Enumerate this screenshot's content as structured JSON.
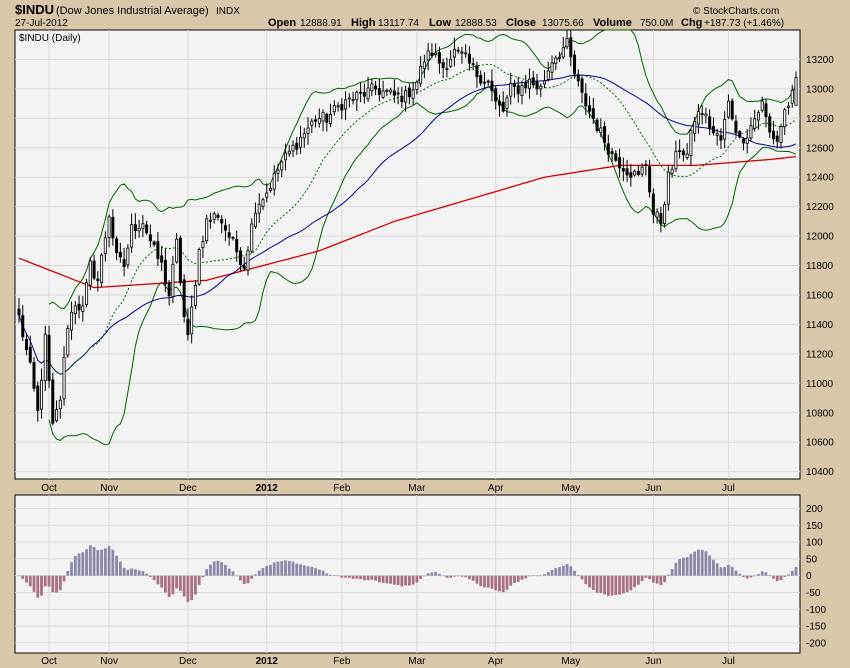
{
  "header": {
    "symbol": "$INDU",
    "name": "(Dow Jones Industrial Average)",
    "exchange": "INDX",
    "date": "27-Jul-2012",
    "watermark": "© StockCharts.com",
    "open_label": "Open",
    "open": "12888.91",
    "high_label": "High",
    "high": "13117.74",
    "low_label": "Low",
    "low": "12888.53",
    "close_label": "Close",
    "close": "13075.66",
    "volume_label": "Volume",
    "volume": "750.0M",
    "chg_label": "Chg",
    "chg": "+187.73 (+1.46%)",
    "panel_label": "$INDU (Daily)"
  },
  "colors": {
    "background": "#d8c7a8",
    "panel": "#f3f3f3",
    "ma20": "#006400",
    "ma50": "#00008b",
    "ma200": "#d00000",
    "bands": "#006400",
    "hist_pos": "#8a8aa8",
    "hist_neg": "#a87080"
  },
  "chart_data": [
    {
      "type": "candlestick",
      "title": "$INDU (Daily)",
      "ylim": [
        10350,
        13400
      ],
      "yticks": [
        10400,
        10600,
        10800,
        11000,
        11200,
        11400,
        11600,
        11800,
        12000,
        12200,
        12400,
        12600,
        12800,
        13000,
        13200
      ],
      "months": [
        {
          "label": "Oct",
          "day": 8
        },
        {
          "label": "Nov",
          "day": 24
        },
        {
          "label": "Dec",
          "day": 45
        },
        {
          "label": "2012",
          "day": 66,
          "bold": true
        },
        {
          "label": "Feb",
          "day": 86
        },
        {
          "label": "Mar",
          "day": 106
        },
        {
          "label": "Apr",
          "day": 127
        },
        {
          "label": "May",
          "day": 147
        },
        {
          "label": "Jun",
          "day": 169
        },
        {
          "label": "Jul",
          "day": 189
        }
      ],
      "anchors": [
        [
          0,
          11450
        ],
        [
          3,
          11100
        ],
        [
          5,
          10800
        ],
        [
          7,
          11300
        ],
        [
          9,
          10700
        ],
        [
          11,
          10900
        ],
        [
          13,
          11400
        ],
        [
          15,
          11550
        ],
        [
          17,
          11500
        ],
        [
          19,
          11800
        ],
        [
          21,
          11700
        ],
        [
          24,
          12150
        ],
        [
          26,
          11850
        ],
        [
          28,
          11800
        ],
        [
          30,
          12050
        ],
        [
          33,
          12100
        ],
        [
          36,
          11900
        ],
        [
          38,
          11800
        ],
        [
          40,
          11600
        ],
        [
          42,
          11950
        ],
        [
          44,
          11450
        ],
        [
          45,
          11300
        ],
        [
          48,
          11900
        ],
        [
          50,
          12100
        ],
        [
          53,
          12150
        ],
        [
          56,
          12000
        ],
        [
          58,
          11900
        ],
        [
          60,
          11800
        ],
        [
          63,
          12200
        ],
        [
          66,
          12300
        ],
        [
          68,
          12400
        ],
        [
          70,
          12500
        ],
        [
          73,
          12600
        ],
        [
          76,
          12700
        ],
        [
          79,
          12800
        ],
        [
          82,
          12800
        ],
        [
          86,
          12900
        ],
        [
          90,
          12950
        ],
        [
          95,
          13000
        ],
        [
          100,
          12950
        ],
        [
          103,
          12950
        ],
        [
          106,
          13050
        ],
        [
          108,
          13200
        ],
        [
          110,
          13250
        ],
        [
          113,
          13150
        ],
        [
          116,
          13250
        ],
        [
          119,
          13200
        ],
        [
          122,
          13100
        ],
        [
          125,
          13050
        ],
        [
          127,
          12900
        ],
        [
          129,
          12850
        ],
        [
          131,
          13000
        ],
        [
          133,
          13000
        ],
        [
          136,
          13050
        ],
        [
          139,
          13000
        ],
        [
          142,
          13200
        ],
        [
          144,
          13250
        ],
        [
          146,
          13300
        ],
        [
          148,
          13100
        ],
        [
          150,
          12950
        ],
        [
          152,
          12850
        ],
        [
          155,
          12700
        ],
        [
          158,
          12550
        ],
        [
          160,
          12500
        ],
        [
          162,
          12450
        ],
        [
          165,
          12400
        ],
        [
          167,
          12500
        ],
        [
          169,
          12150
        ],
        [
          171,
          12100
        ],
        [
          173,
          12400
        ],
        [
          176,
          12600
        ],
        [
          178,
          12550
        ],
        [
          180,
          12800
        ],
        [
          182,
          12850
        ],
        [
          185,
          12700
        ],
        [
          187,
          12650
        ],
        [
          189,
          12900
        ],
        [
          192,
          12650
        ],
        [
          194,
          12700
        ],
        [
          196,
          12800
        ],
        [
          198,
          12900
        ],
        [
          200,
          12700
        ],
        [
          202,
          12650
        ],
        [
          204,
          12850
        ],
        [
          206,
          12950
        ],
        [
          207,
          13076
        ]
      ],
      "ma200_anchors": [
        [
          0,
          11850
        ],
        [
          20,
          11650
        ],
        [
          50,
          11700
        ],
        [
          80,
          11900
        ],
        [
          100,
          12100
        ],
        [
          120,
          12250
        ],
        [
          140,
          12400
        ],
        [
          160,
          12480
        ],
        [
          180,
          12480
        ],
        [
          200,
          12520
        ],
        [
          207,
          12540
        ]
      ],
      "series": [
        {
          "name": "Price",
          "kind": "ohlc"
        },
        {
          "kind": "ma",
          "period": 20
        },
        {
          "kind": "ma",
          "period": 50
        },
        {
          "kind": "ma",
          "period": 200
        },
        {
          "kind": "bollinger"
        }
      ]
    },
    {
      "type": "line",
      "ylim": [
        -230,
        240
      ],
      "yticks": [
        -200,
        -150,
        -100,
        -50,
        0,
        50,
        100,
        150,
        200
      ],
      "series": [
        {
          "kind": "line"
        },
        {
          "kind": "signal"
        },
        {
          "kind": "histogram"
        }
      ]
    }
  ]
}
